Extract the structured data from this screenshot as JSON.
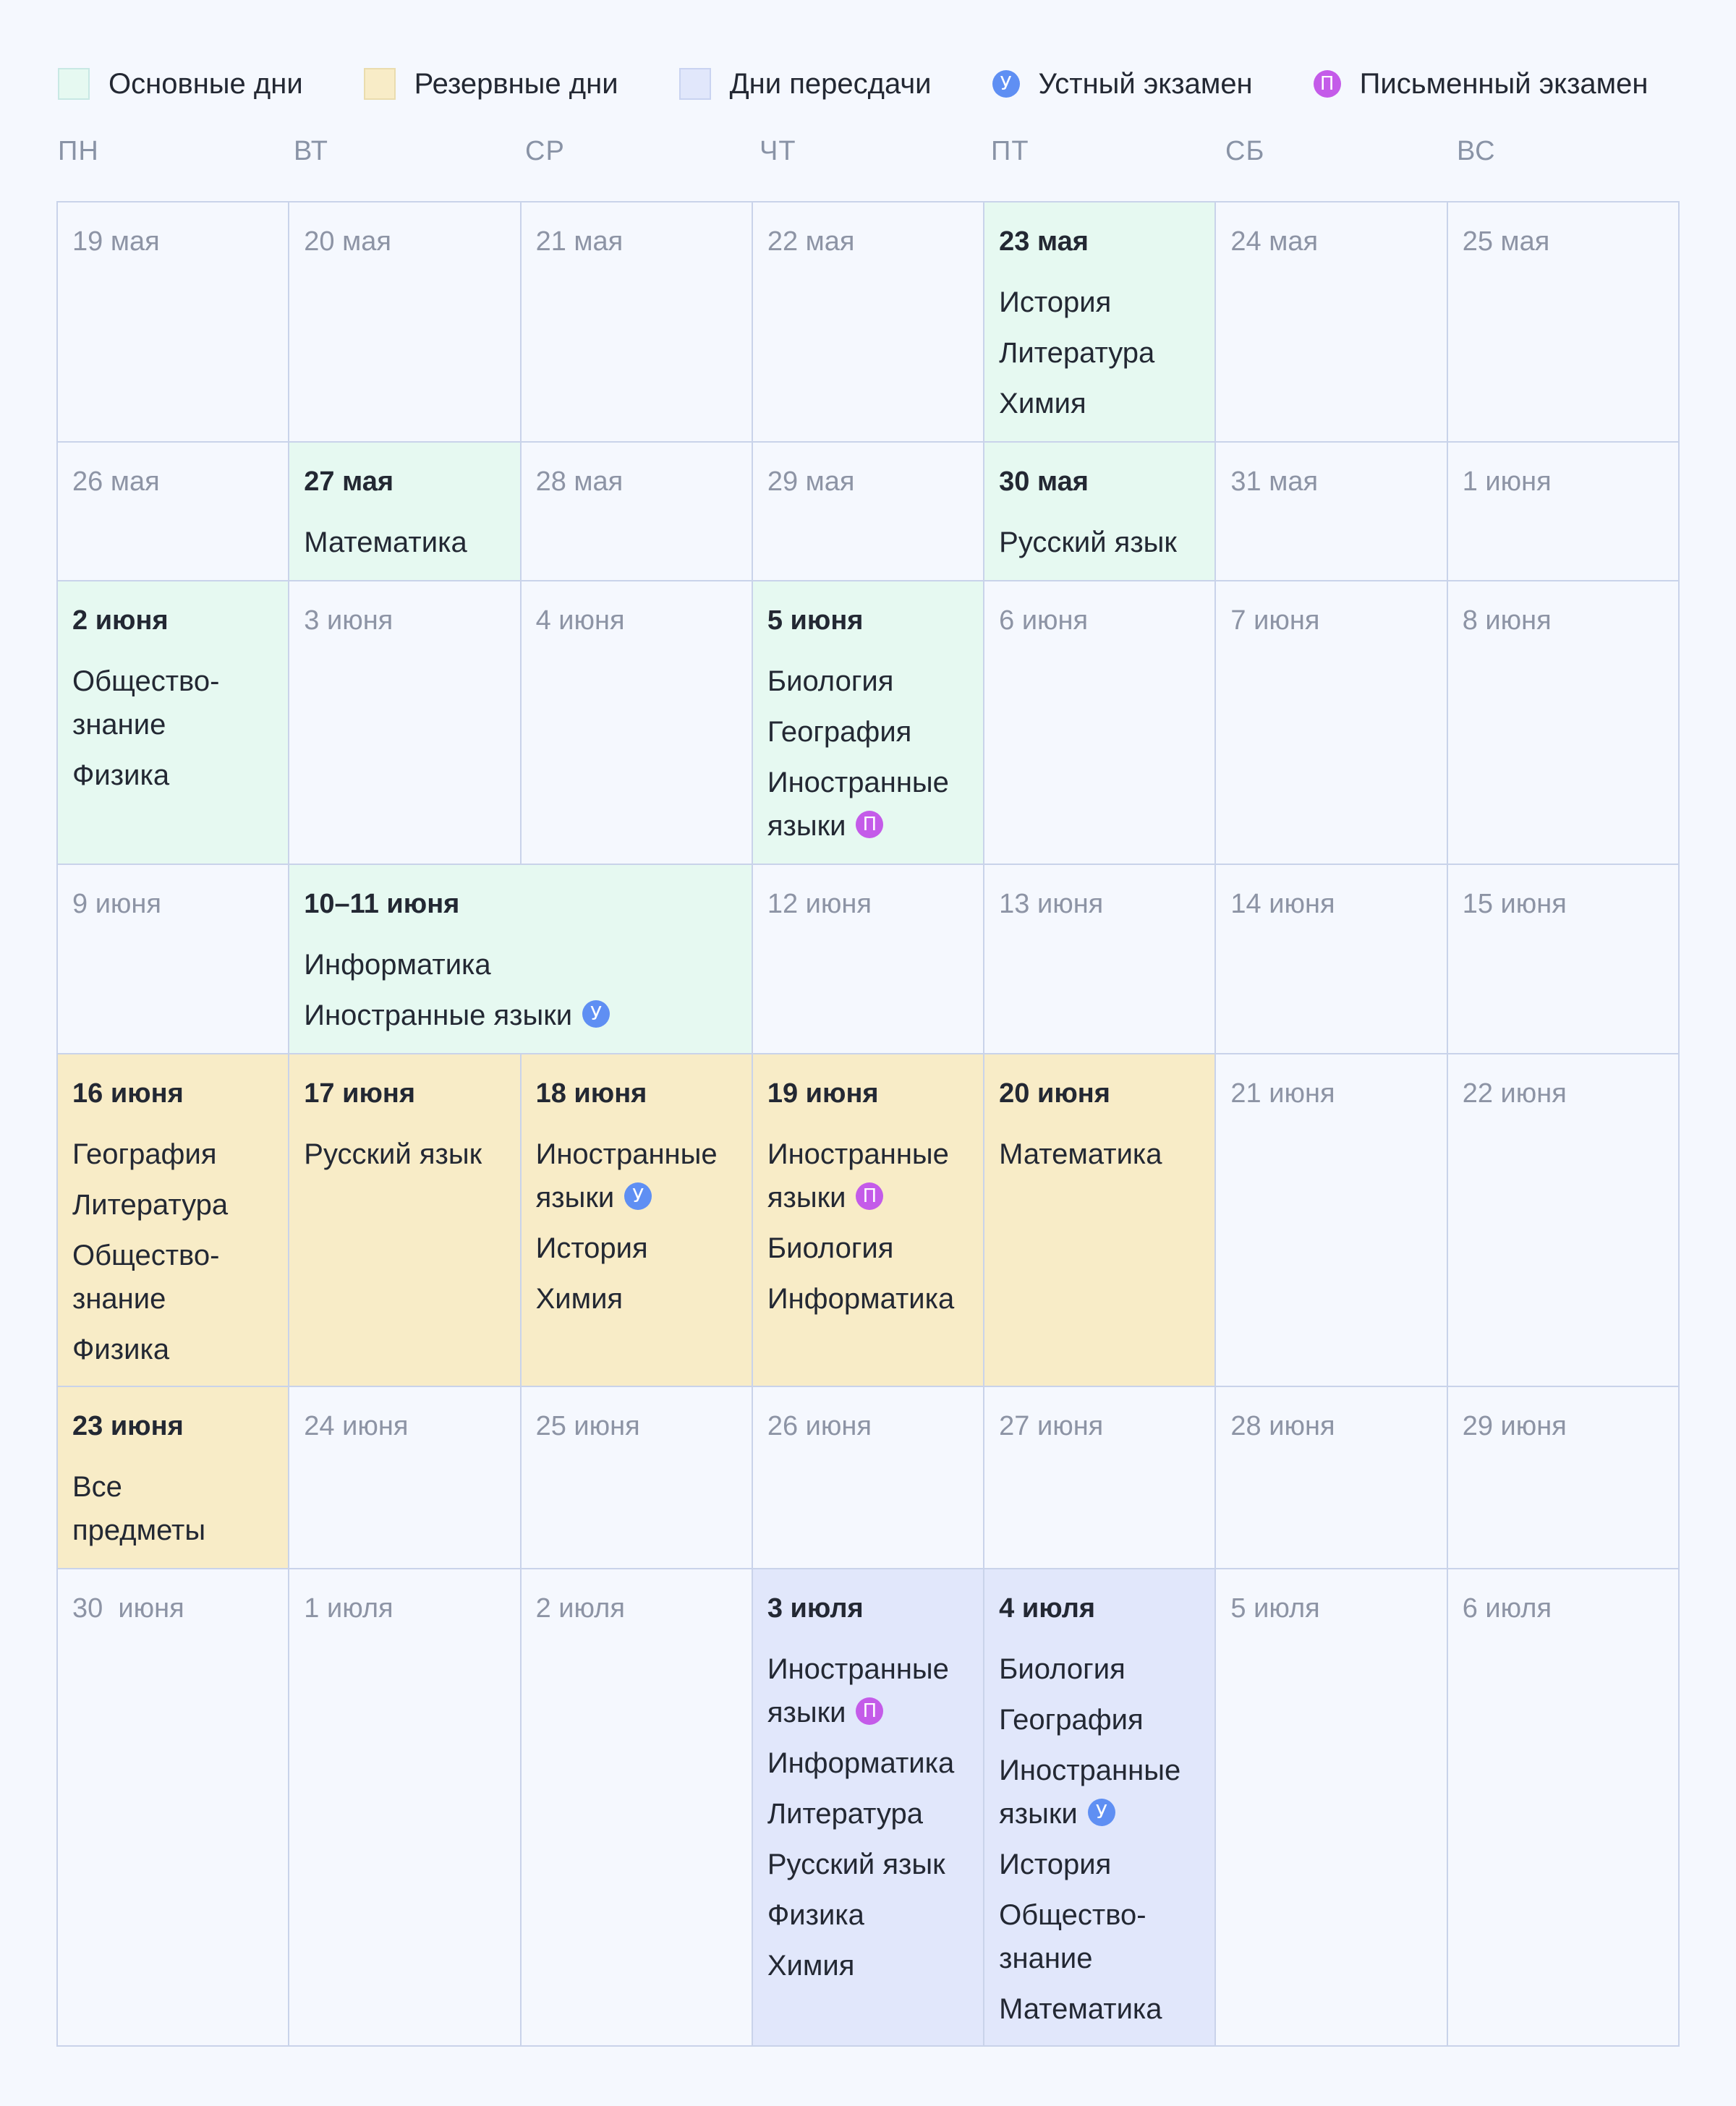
{
  "legend": [
    {
      "kind": "swatch",
      "variant": "main",
      "label": "Основные дни"
    },
    {
      "kind": "swatch",
      "variant": "res",
      "label": "Резервные дни"
    },
    {
      "kind": "swatch",
      "variant": "ret",
      "label": "Дни пересдачи"
    },
    {
      "kind": "badge",
      "badge": "u",
      "label": "Устный экзамен"
    },
    {
      "kind": "badge",
      "badge": "p",
      "label": "Письменный экзамен"
    }
  ],
  "badges": {
    "u": {
      "glyph": "У",
      "color": "#5f8ff3"
    },
    "p": {
      "glyph": "П",
      "color": "#c45be9"
    }
  },
  "colors": {
    "main": "#e6f9f1",
    "res": "#f8ecc7",
    "ret": "#e1e7fb",
    "plain": "#f5f8fe"
  },
  "weekdays": [
    "ПН",
    "ВТ",
    "СР",
    "ЧТ",
    "ПТ",
    "СБ",
    "ВС"
  ],
  "weeks": [
    [
      {
        "date": "19 мая"
      },
      {
        "date": "20 мая"
      },
      {
        "date": "21 мая"
      },
      {
        "date": "22 мая"
      },
      {
        "date": "23 мая",
        "type": "main",
        "subjects": [
          {
            "text": "История"
          },
          {
            "text": "Литература"
          },
          {
            "text": "Химия"
          }
        ]
      },
      {
        "date": "24 мая"
      },
      {
        "date": "25 мая"
      }
    ],
    [
      {
        "date": "26 мая"
      },
      {
        "date": "27 мая",
        "type": "main",
        "subjects": [
          {
            "text": "Математика"
          }
        ]
      },
      {
        "date": "28 мая"
      },
      {
        "date": "29 мая"
      },
      {
        "date": "30 мая",
        "type": "main",
        "subjects": [
          {
            "text": "Русский язык"
          }
        ]
      },
      {
        "date": "31 мая"
      },
      {
        "date": "1 июня"
      }
    ],
    [
      {
        "date": "2 июня",
        "type": "main",
        "subjects": [
          {
            "text": "Общество-",
            "text2": "знание"
          },
          {
            "text": "Физика"
          }
        ]
      },
      {
        "date": "3 июня"
      },
      {
        "date": "4 июня"
      },
      {
        "date": "5 июня",
        "type": "main",
        "subjects": [
          {
            "text": "Биология"
          },
          {
            "text": "География"
          },
          {
            "text": "Иностранные",
            "text2": "языки",
            "badge": "p"
          }
        ]
      },
      {
        "date": "6 июня"
      },
      {
        "date": "7 июня"
      },
      {
        "date": "8 июня"
      }
    ],
    [
      {
        "date": "9 июня"
      },
      {
        "date": "10–11 июня",
        "type": "main",
        "span": 2,
        "subjects": [
          {
            "text": "Информатика"
          },
          {
            "text": "Иностранные языки",
            "badge": "u"
          }
        ]
      },
      {
        "date": "12 июня"
      },
      {
        "date": "13 июня"
      },
      {
        "date": "14 июня"
      },
      {
        "date": "15 июня"
      }
    ],
    [
      {
        "date": "16 июня",
        "type": "res",
        "subjects": [
          {
            "text": "География"
          },
          {
            "text": "Литература"
          },
          {
            "text": "Общество-",
            "text2": "знание"
          },
          {
            "text": "Физика"
          }
        ]
      },
      {
        "date": "17 июня",
        "type": "res",
        "subjects": [
          {
            "text": "Русский язык"
          }
        ]
      },
      {
        "date": "18 июня",
        "type": "res",
        "subjects": [
          {
            "text": "Иностранные",
            "text2": "языки",
            "badge": "u"
          },
          {
            "text": "История"
          },
          {
            "text": "Химия"
          }
        ]
      },
      {
        "date": "19 июня",
        "type": "res",
        "subjects": [
          {
            "text": "Иностранные",
            "text2": "языки",
            "badge": "p"
          },
          {
            "text": "Биология"
          },
          {
            "text": "Информатика"
          }
        ]
      },
      {
        "date": "20 июня",
        "type": "res",
        "subjects": [
          {
            "text": "Математика"
          }
        ]
      },
      {
        "date": "21 июня"
      },
      {
        "date": "22 июня"
      }
    ],
    [
      {
        "date": "23 июня",
        "type": "res",
        "subjects": [
          {
            "text": "Все",
            "text2": "предметы"
          }
        ]
      },
      {
        "date": "24 июня"
      },
      {
        "date": "25 июня"
      },
      {
        "date": "26 июня"
      },
      {
        "date": "27 июня"
      },
      {
        "date": "28 июня"
      },
      {
        "date": "29 июня"
      }
    ],
    [
      {
        "date": "30  июня"
      },
      {
        "date": "1 июля"
      },
      {
        "date": "2 июля"
      },
      {
        "date": "3 июля",
        "type": "ret",
        "subjects": [
          {
            "text": "Иностранные",
            "text2": "языки",
            "badge": "p"
          },
          {
            "text": "Информатика"
          },
          {
            "text": "Литература"
          },
          {
            "text": "Русский язык"
          },
          {
            "text": "Физика"
          },
          {
            "text": "Химия"
          }
        ]
      },
      {
        "date": "4 июля",
        "type": "ret",
        "subjects": [
          {
            "text": "Биология"
          },
          {
            "text": "География"
          },
          {
            "text": "Иностранные",
            "text2": "языки",
            "badge": "u"
          },
          {
            "text": "История"
          },
          {
            "text": "Общество-",
            "text2": "знание"
          },
          {
            "text": "Математика"
          }
        ]
      },
      {
        "date": "5 июля"
      },
      {
        "date": "6 июля"
      }
    ]
  ]
}
